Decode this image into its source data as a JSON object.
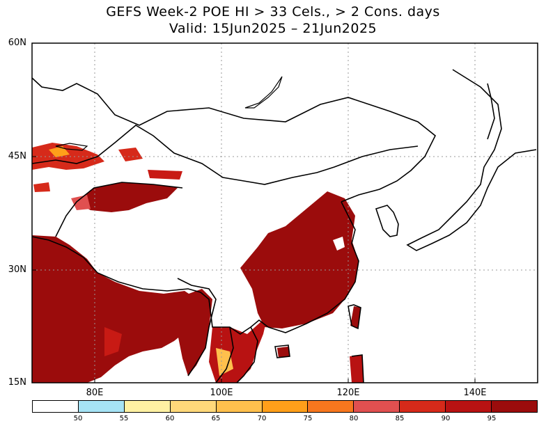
{
  "title": {
    "line1": "GEFS Week-2 POE HI > 33 Cels., > 2 Cons. days",
    "line2": "Valid: 15Jun2025 – 21Jun2025"
  },
  "axes": {
    "lat_labels": [
      "60N",
      "45N",
      "30N",
      "15N"
    ],
    "lon_labels": [
      "80E",
      "100E",
      "120E",
      "140E"
    ]
  },
  "legend": {
    "labels": [
      "50",
      "55",
      "60",
      "65",
      "70",
      "75",
      "80",
      "85",
      "90",
      "95"
    ],
    "colors": [
      "#ffffff",
      "#a6e3f5",
      "#fff1a3",
      "#ffd87a",
      "#ffc04d",
      "#ff9f1a",
      "#f7771e",
      "#e05050",
      "#d62a1a",
      "#b81212",
      "#9b0c0c"
    ]
  },
  "regions": [
    {
      "name": "india-region",
      "category": "95"
    },
    {
      "name": "east-china-region",
      "category": "95"
    },
    {
      "name": "taklamakan-region",
      "category": "95"
    },
    {
      "name": "southeast-asia-region",
      "category": "90"
    },
    {
      "name": "central-asia-region",
      "category": "90"
    }
  ]
}
